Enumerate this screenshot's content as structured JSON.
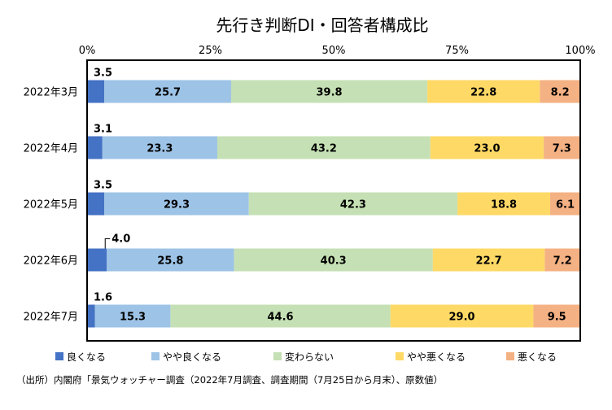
{
  "chart_data": {
    "type": "bar",
    "orientation": "horizontal",
    "stacked": true,
    "title": "先行き判断DI・回答者構成比",
    "x_ticks": [
      "0%",
      "25%",
      "50%",
      "75%",
      "100%"
    ],
    "xlim": [
      0,
      100
    ],
    "categories": [
      "2022年3月",
      "2022年4月",
      "2022年5月",
      "2022年6月",
      "2022年7月"
    ],
    "series": [
      {
        "name": "良くなる",
        "color": "#4472C4",
        "values": [
          3.5,
          3.1,
          3.5,
          4.0,
          1.6
        ]
      },
      {
        "name": "やや良くなる",
        "color": "#9DC3E6",
        "values": [
          25.7,
          23.3,
          29.3,
          25.8,
          15.3
        ]
      },
      {
        "name": "変わらない",
        "color": "#C5E0B4",
        "values": [
          39.8,
          43.2,
          42.3,
          40.3,
          44.6
        ]
      },
      {
        "name": "やや悪くなる",
        "color": "#FFD966",
        "values": [
          22.8,
          23.0,
          18.8,
          22.7,
          29.0
        ]
      },
      {
        "name": "悪くなる",
        "color": "#F4B183",
        "values": [
          8.2,
          7.3,
          6.1,
          7.2,
          9.5
        ]
      }
    ],
    "value_labels": [
      [
        "3.5",
        "25.7",
        "39.8",
        "22.8",
        "8.2"
      ],
      [
        "3.1",
        "23.3",
        "43.2",
        "23.0",
        "7.3"
      ],
      [
        "3.5",
        "29.3",
        "42.3",
        "18.8",
        "6.1"
      ],
      [
        "4.0",
        "25.8",
        "40.3",
        "22.7",
        "7.2"
      ],
      [
        "1.6",
        "15.3",
        "44.6",
        "29.0",
        "9.5"
      ]
    ],
    "legend_position": "bottom",
    "grid": false
  },
  "source_note": "（出所）内閣府「景気ウォッチャー調査（2022年7月調査、調査期間（7月25日から月末）、原数値）"
}
